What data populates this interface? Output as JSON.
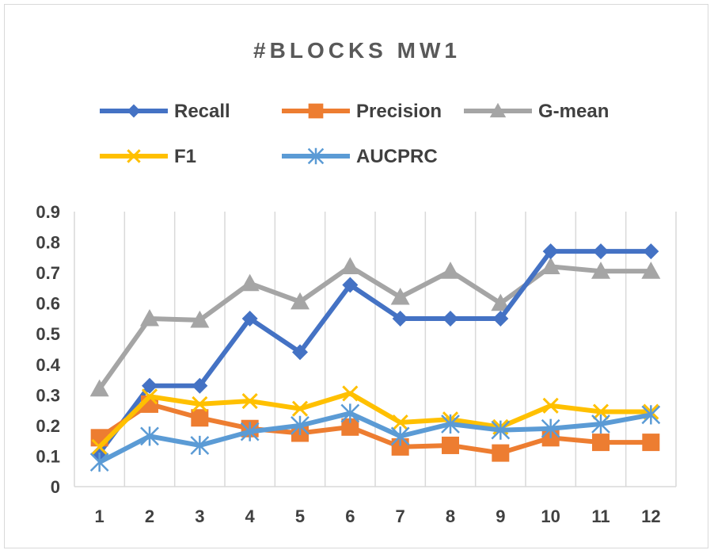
{
  "chart_data": {
    "type": "line",
    "title": "#BLOCKS MW1",
    "xlabel": "",
    "ylabel": "",
    "categories": [
      "1",
      "2",
      "3",
      "4",
      "5",
      "6",
      "7",
      "8",
      "9",
      "10",
      "11",
      "12"
    ],
    "ylim": [
      0,
      0.9
    ],
    "yticks": [
      "0",
      "0.1",
      "0.2",
      "0.3",
      "0.4",
      "0.5",
      "0.6",
      "0.7",
      "0.8",
      "0.9"
    ],
    "grid": "vertical",
    "legend": "top",
    "series": [
      {
        "name": "Recall",
        "color": "#4472c4",
        "marker": "diamond",
        "values": [
          0.11,
          0.33,
          0.33,
          0.55,
          0.44,
          0.66,
          0.55,
          0.55,
          0.55,
          0.77,
          0.77,
          0.77
        ]
      },
      {
        "name": "Precision",
        "color": "#ed7d31",
        "marker": "square",
        "values": [
          0.16,
          0.27,
          0.225,
          0.19,
          0.175,
          0.195,
          0.13,
          0.135,
          0.11,
          0.16,
          0.145,
          0.145
        ]
      },
      {
        "name": "G-mean",
        "color": "#a5a5a5",
        "marker": "triangle",
        "values": [
          0.32,
          0.55,
          0.545,
          0.665,
          0.605,
          0.72,
          0.62,
          0.705,
          0.6,
          0.72,
          0.705,
          0.705
        ]
      },
      {
        "name": "F1",
        "color": "#ffc000",
        "marker": "x",
        "values": [
          0.13,
          0.295,
          0.27,
          0.28,
          0.255,
          0.305,
          0.21,
          0.22,
          0.195,
          0.265,
          0.245,
          0.245
        ]
      },
      {
        "name": "AUCPRC",
        "color": "#5b9bd5",
        "marker": "star",
        "values": [
          0.08,
          0.165,
          0.135,
          0.18,
          0.2,
          0.24,
          0.165,
          0.205,
          0.185,
          0.19,
          0.205,
          0.235
        ]
      }
    ]
  }
}
